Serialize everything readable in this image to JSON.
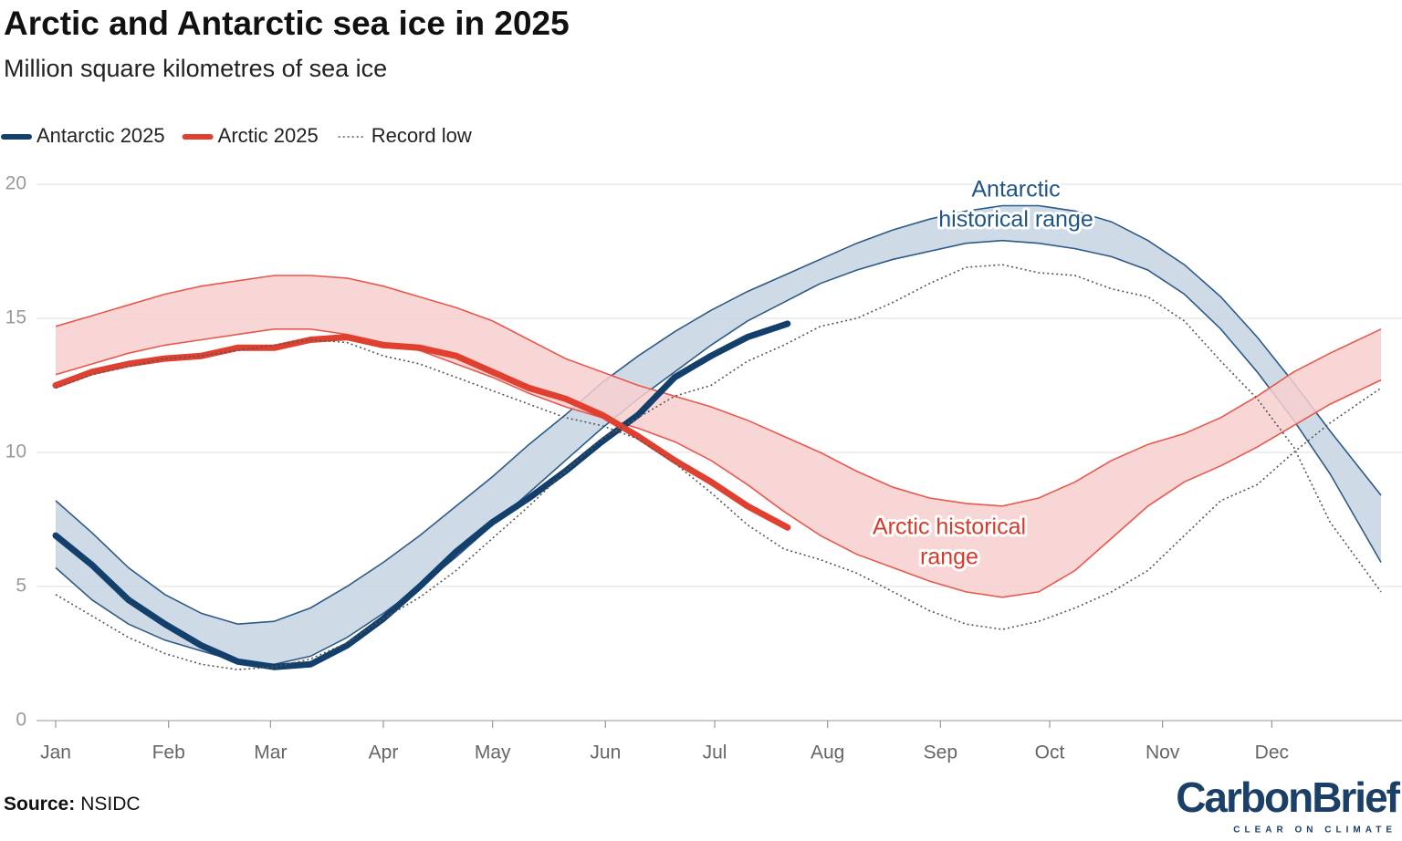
{
  "chart_data": {
    "type": "line",
    "title": "Arctic and Antarctic sea ice in 2025",
    "subtitle": "Million square kilometres of sea ice",
    "xlim": [
      0,
      365
    ],
    "xticks": [
      {
        "value": 0,
        "label": "Jan"
      },
      {
        "value": 31,
        "label": "Feb"
      },
      {
        "value": 59,
        "label": "Mar"
      },
      {
        "value": 90,
        "label": "Apr"
      },
      {
        "value": 120,
        "label": "May"
      },
      {
        "value": 151,
        "label": "Jun"
      },
      {
        "value": 181,
        "label": "Jul"
      },
      {
        "value": 212,
        "label": "Aug"
      },
      {
        "value": 243,
        "label": "Sep"
      },
      {
        "value": 273,
        "label": "Oct"
      },
      {
        "value": 304,
        "label": "Nov"
      },
      {
        "value": 334,
        "label": "Dec"
      }
    ],
    "ylim": [
      0,
      20
    ],
    "yticks": [
      0,
      5,
      10,
      15,
      20
    ],
    "grid": true,
    "x": [
      0,
      10,
      20,
      30,
      40,
      50,
      60,
      70,
      80,
      90,
      100,
      110,
      120,
      130,
      140,
      150,
      160,
      170,
      180,
      190,
      200,
      210,
      220,
      230,
      240,
      250,
      260,
      270,
      280,
      290,
      300,
      310,
      320,
      330,
      340,
      350,
      364
    ],
    "bands": [
      {
        "label_lines": [
          "Antarctic",
          "historical range"
        ],
        "color": "#c6d4e2",
        "stroke": "#2d5a86",
        "text_color": "#1f5488",
        "upper": [
          8.2,
          7.0,
          5.7,
          4.7,
          4.0,
          3.6,
          3.7,
          4.2,
          5.0,
          5.9,
          6.9,
          8.0,
          9.1,
          10.3,
          11.4,
          12.6,
          13.6,
          14.5,
          15.3,
          16.0,
          16.6,
          17.2,
          17.8,
          18.3,
          18.7,
          19.0,
          19.2,
          19.2,
          19.0,
          18.6,
          17.9,
          17.0,
          15.8,
          14.3,
          12.6,
          10.8,
          8.4
        ],
        "lower": [
          5.7,
          4.5,
          3.6,
          3.0,
          2.6,
          2.2,
          2.1,
          2.4,
          3.1,
          4.0,
          5.0,
          6.1,
          7.3,
          8.5,
          9.7,
          10.9,
          12.0,
          13.0,
          14.0,
          14.9,
          15.6,
          16.3,
          16.8,
          17.2,
          17.5,
          17.8,
          17.9,
          17.8,
          17.6,
          17.3,
          16.8,
          15.9,
          14.6,
          13.0,
          11.2,
          9.2,
          5.9
        ]
      },
      {
        "label_lines": [
          "Arctic historical",
          "range"
        ],
        "color": "#f7cfcf",
        "stroke": "#e8584c",
        "text_color": "#d8392b",
        "upper": [
          14.7,
          15.1,
          15.5,
          15.9,
          16.2,
          16.4,
          16.6,
          16.6,
          16.5,
          16.2,
          15.8,
          15.4,
          14.9,
          14.2,
          13.5,
          13.0,
          12.5,
          12.1,
          11.7,
          11.2,
          10.6,
          10.0,
          9.3,
          8.7,
          8.3,
          8.1,
          8.0,
          8.3,
          8.9,
          9.7,
          10.3,
          10.7,
          11.3,
          12.1,
          13.0,
          13.7,
          14.6
        ],
        "lower": [
          12.9,
          13.3,
          13.7,
          14.0,
          14.2,
          14.4,
          14.6,
          14.6,
          14.4,
          14.1,
          13.8,
          13.3,
          12.8,
          12.2,
          11.7,
          11.3,
          10.9,
          10.4,
          9.7,
          8.8,
          7.8,
          6.9,
          6.2,
          5.7,
          5.2,
          4.8,
          4.6,
          4.8,
          5.6,
          6.8,
          8.0,
          8.9,
          9.5,
          10.2,
          11.0,
          11.8,
          12.7
        ]
      }
    ],
    "series": [
      {
        "name": "Antarctic 2025",
        "color": "#123f6b",
        "style": "solid",
        "x": [
          0,
          10,
          20,
          30,
          40,
          50,
          60,
          70,
          80,
          90,
          100,
          110,
          120,
          130,
          140,
          150,
          160,
          170,
          180,
          190,
          201
        ],
        "values": [
          6.9,
          5.8,
          4.5,
          3.6,
          2.8,
          2.2,
          2.0,
          2.1,
          2.8,
          3.8,
          5.0,
          6.3,
          7.4,
          8.3,
          9.3,
          10.4,
          11.4,
          12.8,
          13.6,
          14.3,
          14.8
        ]
      },
      {
        "name": "Arctic 2025",
        "color": "#e0402f",
        "style": "solid",
        "x": [
          0,
          10,
          20,
          30,
          40,
          50,
          60,
          70,
          80,
          90,
          100,
          110,
          120,
          130,
          140,
          150,
          160,
          170,
          180,
          190,
          201
        ],
        "values": [
          12.5,
          13.0,
          13.3,
          13.5,
          13.6,
          13.9,
          13.9,
          14.2,
          14.3,
          14.0,
          13.9,
          13.6,
          13.0,
          12.4,
          12.0,
          11.4,
          10.6,
          9.7,
          8.9,
          8.0,
          7.2
        ]
      },
      {
        "name": "Record low",
        "color": "#555555",
        "style": "dotted",
        "values": [
          [
            4.7,
            3.9,
            3.1,
            2.5,
            2.1,
            1.9,
            2.0,
            2.3,
            2.9,
            3.8,
            4.6,
            5.6,
            6.8,
            8.0,
            9.3,
            10.5,
            11.3,
            12.1,
            12.5,
            13.4,
            14.0,
            14.7,
            15.0,
            15.6,
            16.3,
            16.9,
            17.0,
            16.7,
            16.6,
            16.1,
            15.8,
            14.9,
            13.4,
            12.0,
            10.2,
            7.4,
            4.8
          ],
          [
            12.4,
            12.9,
            13.2,
            13.5,
            13.6,
            13.8,
            14.0,
            14.2,
            14.1,
            13.6,
            13.3,
            12.8,
            12.3,
            11.8,
            11.3,
            11.0,
            10.5,
            9.6,
            8.5,
            7.3,
            6.4,
            6.0,
            5.5,
            4.8,
            4.1,
            3.6,
            3.4,
            3.7,
            4.2,
            4.8,
            5.6,
            6.9,
            8.2,
            8.8,
            10.0,
            11.1,
            12.4
          ]
        ]
      }
    ],
    "source_label": "Source:",
    "source": "NSIDC",
    "logo": {
      "name": "CarbonBrief",
      "tagline": "CLEAR ON CLIMATE"
    }
  }
}
